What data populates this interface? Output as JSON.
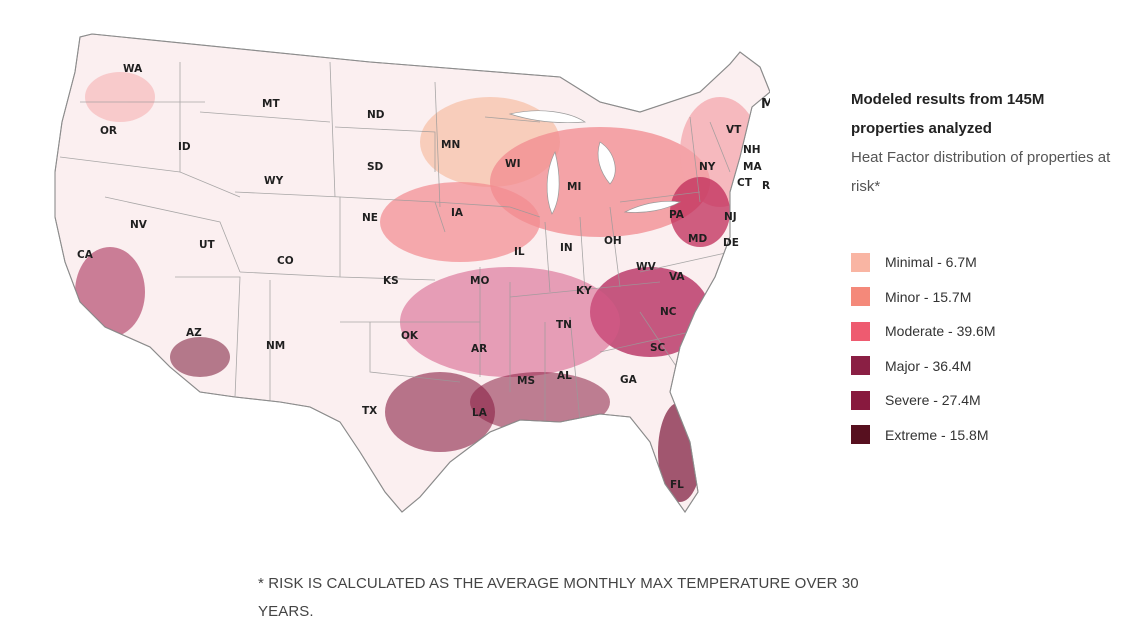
{
  "map": {
    "name": "United States heat factor risk map",
    "state_labels": [
      {
        "abbr": "WA",
        "risk": "minimal"
      },
      {
        "abbr": "OR",
        "risk": "minimal"
      },
      {
        "abbr": "ID",
        "risk": "minimal"
      },
      {
        "abbr": "MT",
        "risk": "minimal"
      },
      {
        "abbr": "ND",
        "risk": "minimal"
      },
      {
        "abbr": "MN",
        "risk": "minor"
      },
      {
        "abbr": "WI",
        "risk": "minor"
      },
      {
        "abbr": "MI",
        "risk": "moderate"
      },
      {
        "abbr": "ME",
        "risk": "minimal"
      },
      {
        "abbr": "VT",
        "risk": "minor"
      },
      {
        "abbr": "NH",
        "risk": "minor"
      },
      {
        "abbr": "MA",
        "risk": "moderate"
      },
      {
        "abbr": "NY",
        "risk": "moderate"
      },
      {
        "abbr": "CT",
        "risk": "moderate"
      },
      {
        "abbr": "RI",
        "risk": "moderate"
      },
      {
        "abbr": "SD",
        "risk": "minimal"
      },
      {
        "abbr": "WY",
        "risk": "minimal"
      },
      {
        "abbr": "IA",
        "risk": "moderate"
      },
      {
        "abbr": "NE",
        "risk": "minimal"
      },
      {
        "abbr": "PA",
        "risk": "moderate"
      },
      {
        "abbr": "NJ",
        "risk": "major"
      },
      {
        "abbr": "NV",
        "risk": "minimal"
      },
      {
        "abbr": "UT",
        "risk": "minimal"
      },
      {
        "abbr": "CO",
        "risk": "minimal"
      },
      {
        "abbr": "IL",
        "risk": "moderate"
      },
      {
        "abbr": "IN",
        "risk": "moderate"
      },
      {
        "abbr": "OH",
        "risk": "moderate"
      },
      {
        "abbr": "MD",
        "risk": "major"
      },
      {
        "abbr": "DE",
        "risk": "major"
      },
      {
        "abbr": "CA",
        "risk": "moderate"
      },
      {
        "abbr": "WV",
        "risk": "moderate"
      },
      {
        "abbr": "KS",
        "risk": "moderate"
      },
      {
        "abbr": "MO",
        "risk": "moderate"
      },
      {
        "abbr": "VA",
        "risk": "major"
      },
      {
        "abbr": "KY",
        "risk": "moderate"
      },
      {
        "abbr": "TN",
        "risk": "major"
      },
      {
        "abbr": "NC",
        "risk": "major"
      },
      {
        "abbr": "AZ",
        "risk": "severe"
      },
      {
        "abbr": "NM",
        "risk": "minimal"
      },
      {
        "abbr": "OK",
        "risk": "major"
      },
      {
        "abbr": "AR",
        "risk": "major"
      },
      {
        "abbr": "SC",
        "risk": "major"
      },
      {
        "abbr": "MS",
        "risk": "severe"
      },
      {
        "abbr": "AL",
        "risk": "major"
      },
      {
        "abbr": "GA",
        "risk": "major"
      },
      {
        "abbr": "TX",
        "risk": "severe"
      },
      {
        "abbr": "LA",
        "risk": "severe"
      },
      {
        "abbr": "FL",
        "risk": "extreme"
      }
    ]
  },
  "legend": {
    "title": "Modeled results from 145M properties analyzed",
    "subtitle": "Heat Factor distribution of properties at risk*",
    "items": [
      {
        "key": "minimal",
        "label": "Minimal - 6.7M",
        "color": "#f9b5a3"
      },
      {
        "key": "minor",
        "label": "Minor - 15.7M",
        "color": "#f4897a"
      },
      {
        "key": "moderate",
        "label": "Moderate - 39.6M",
        "color": "#ee5b70"
      },
      {
        "key": "major",
        "label": "Major - 36.4M",
        "color": "#8a1f44"
      },
      {
        "key": "severe",
        "label": "Severe - 27.4M",
        "color": "#88193e"
      },
      {
        "key": "extreme",
        "label": "Extreme - 15.8M",
        "color": "#57101f"
      }
    ]
  },
  "footnote": "* RISK IS CALCULATED AS THE AVERAGE MONTHLY MAX TEMPERATURE OVER 30 YEARS."
}
